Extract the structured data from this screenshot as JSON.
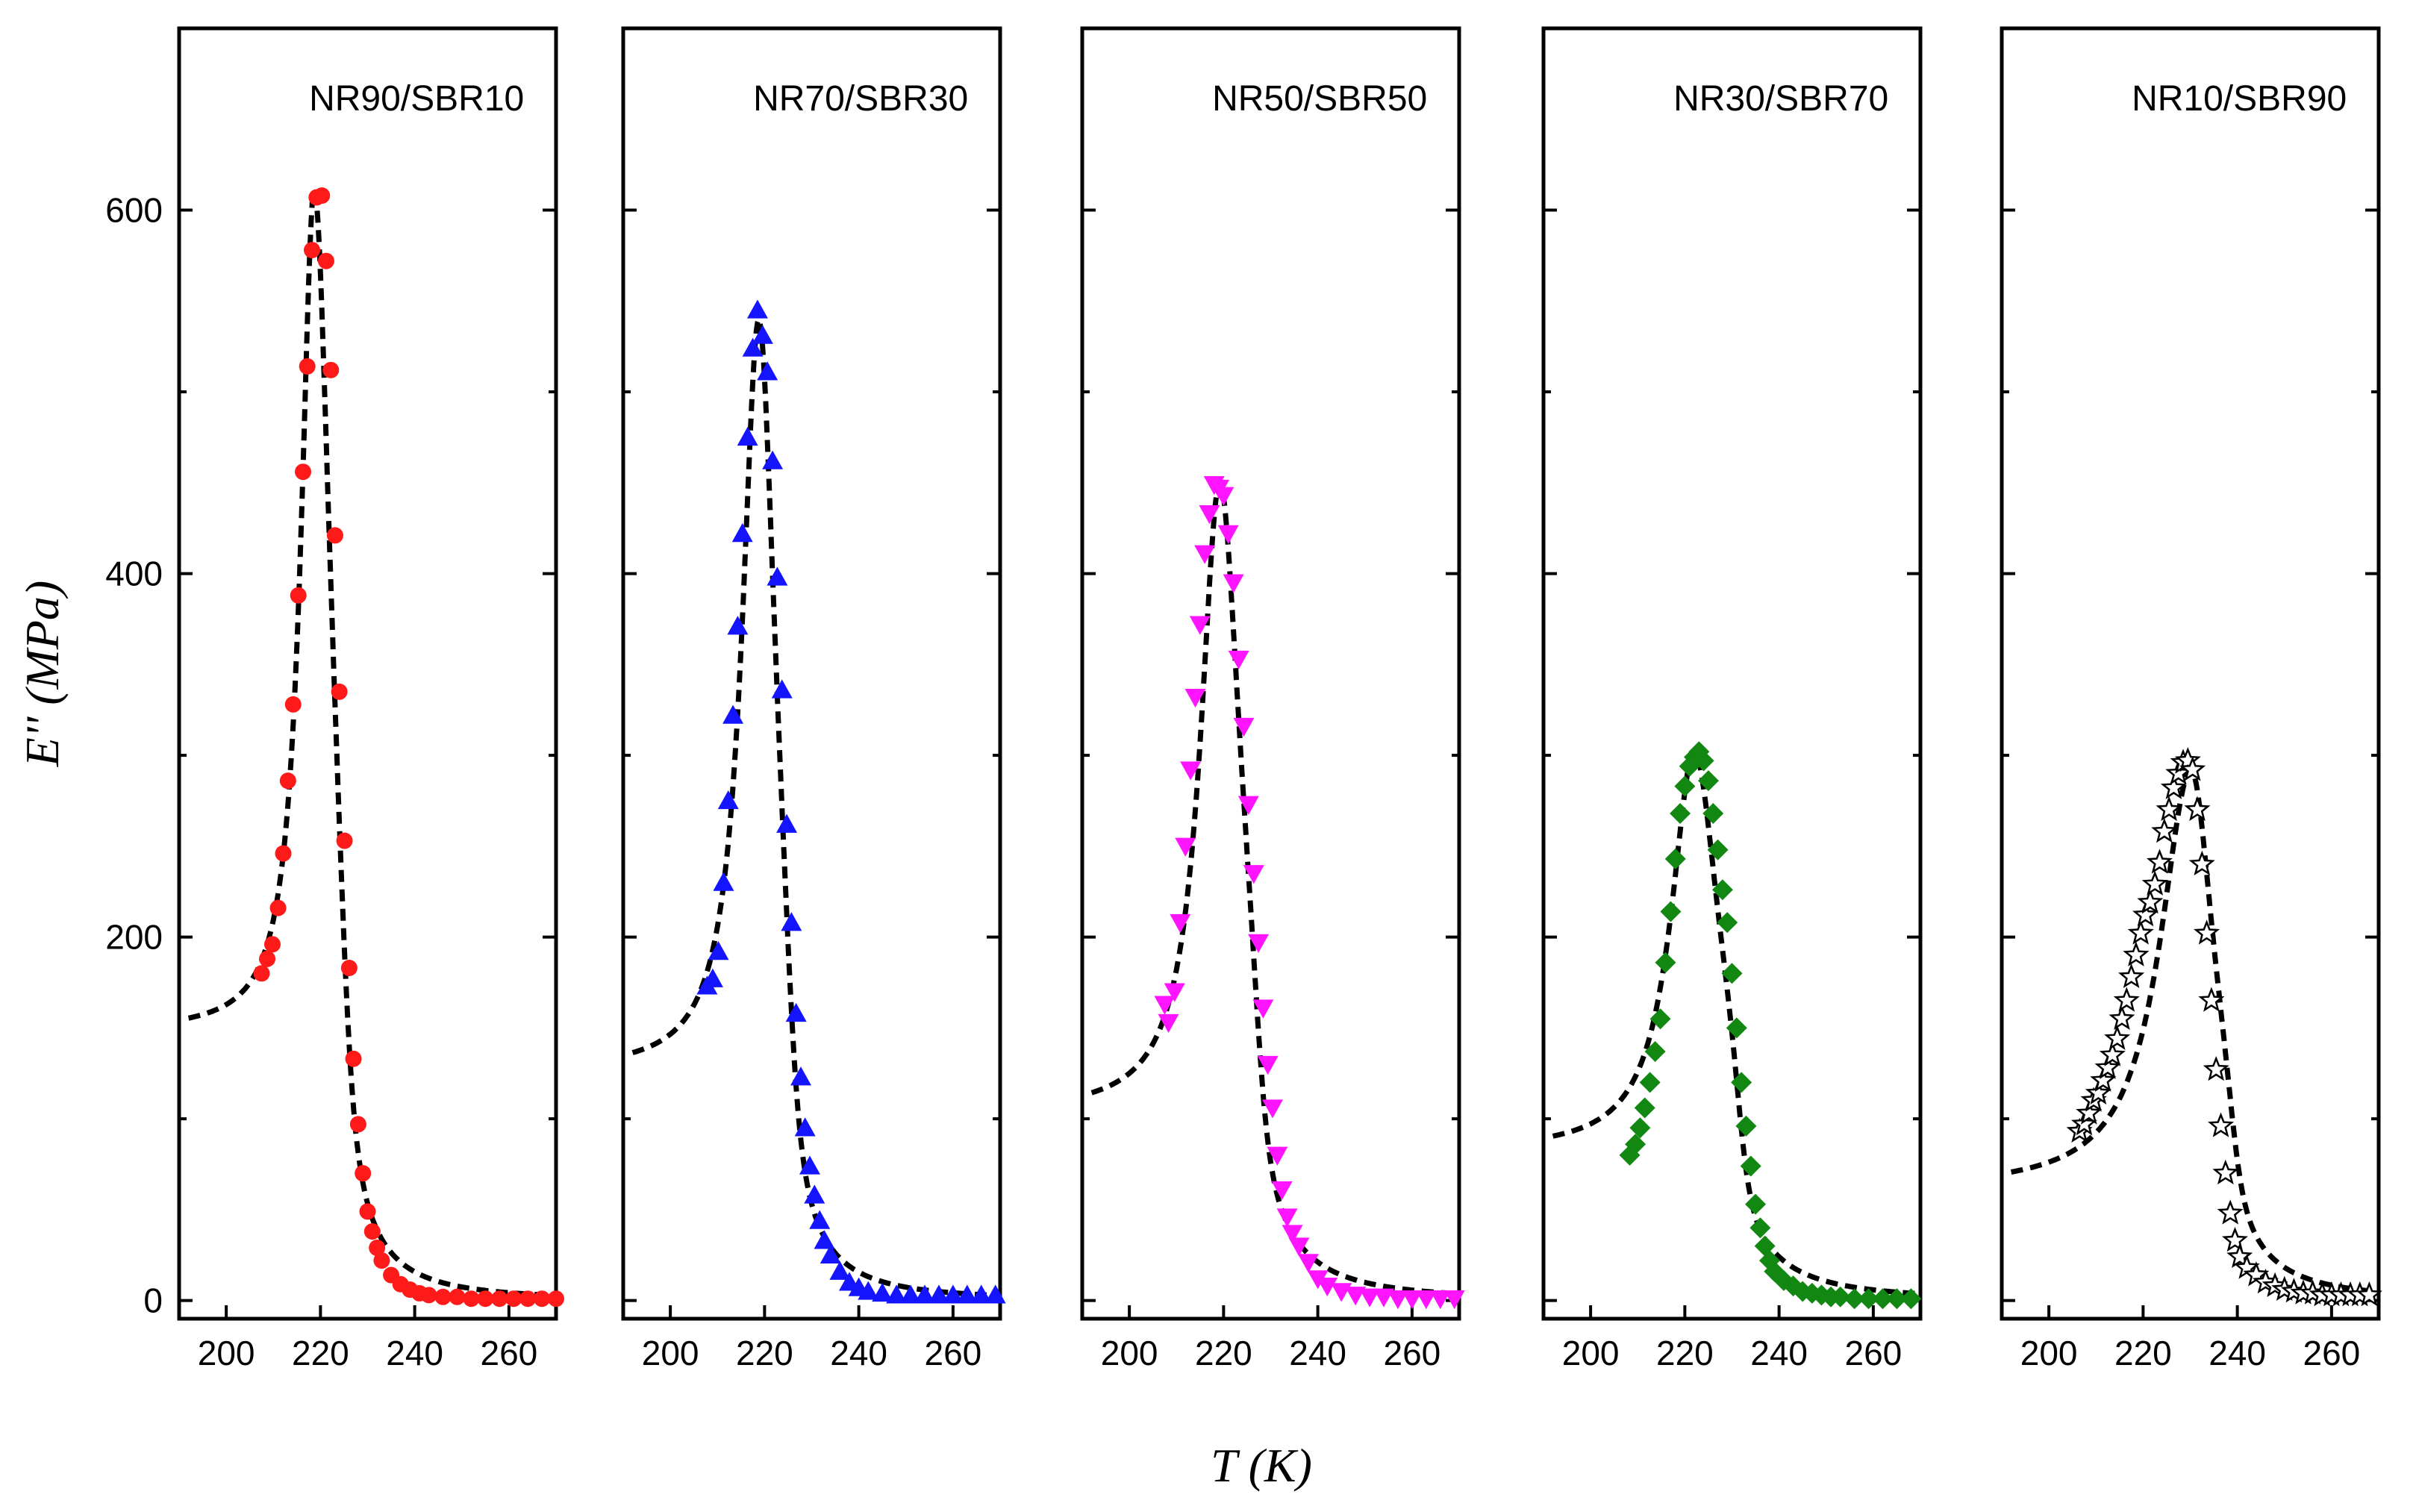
{
  "chart_data": {
    "type": "scatter",
    "layout": "1x5 panels, shared y-axis",
    "xlabel": "T (K)",
    "ylabel": "E'' (MPa)",
    "xlim": [
      190,
      270
    ],
    "ylim": [
      -10,
      700
    ],
    "xticks": [
      200,
      220,
      240,
      260
    ],
    "yticks": [
      0,
      200,
      400,
      600
    ],
    "xtick_labels": [
      "200",
      "220",
      "240",
      "260"
    ],
    "ytick_labels": [
      "0",
      "200",
      "400",
      "600"
    ],
    "panels": [
      {
        "title": "NR90/SBR10",
        "marker": "circle",
        "color": "#ff1a1a",
        "fit": {
          "base": 148,
          "peak_x": 218.7,
          "peak_y": 612,
          "hwhm_left": 3.4,
          "hwhm_right": 4.0,
          "x_start": 192
        },
        "x": [
          207.5,
          208.7,
          209.8,
          211,
          212.1,
          213.1,
          214.2,
          215.3,
          216.3,
          217.2,
          218.2,
          219.2,
          220.3,
          221.2,
          222.2,
          223.1,
          224,
          225.1,
          226.1,
          227,
          228,
          229,
          230,
          231,
          232,
          233,
          235,
          237,
          239,
          241,
          243,
          246,
          249,
          252,
          255,
          258,
          261,
          264,
          267,
          270
        ],
        "y": [
          180,
          188,
          196,
          216,
          246,
          286,
          328,
          388,
          456,
          514,
          578,
          607,
          608,
          572,
          512,
          421,
          335,
          253,
          183,
          133,
          97,
          70,
          49,
          38,
          29,
          22,
          14,
          9,
          6,
          4,
          3,
          2,
          2,
          1,
          1,
          1,
          1,
          1,
          1,
          1
        ]
      },
      {
        "title": "NR70/SBR30",
        "marker": "triangle-up",
        "color": "#1414ff",
        "fit": {
          "base": 126,
          "peak_x": 218.8,
          "peak_y": 540,
          "hwhm_left": 4.3,
          "hwhm_right": 4.2,
          "x_start": 192
        },
        "x": [
          207.8,
          209,
          210.2,
          211.3,
          212.3,
          213.3,
          214.3,
          215.3,
          216.4,
          217.5,
          218.5,
          219.6,
          220.6,
          221.7,
          222.7,
          223.7,
          224.7,
          225.7,
          226.7,
          227.7,
          228.6,
          229.6,
          230.6,
          231.7,
          232.7,
          234,
          236,
          238,
          240,
          242,
          245,
          248,
          251,
          254,
          257,
          260,
          263,
          266,
          269
        ],
        "y": [
          173,
          177,
          192,
          230,
          275,
          322,
          371,
          422,
          475,
          524,
          545,
          531,
          511,
          462,
          398,
          336,
          262,
          208,
          158,
          123,
          95,
          74,
          58,
          44,
          33,
          25,
          16,
          10,
          7,
          5,
          4,
          3,
          3,
          3,
          3,
          3,
          3,
          3,
          3
        ]
      },
      {
        "title": "NR50/SBR50",
        "marker": "triangle-down",
        "color": "#ff14ff",
        "fit": {
          "base": 103,
          "peak_x": 219.2,
          "peak_y": 450,
          "hwhm_left": 5.0,
          "hwhm_right": 5.3,
          "x_start": 192
        },
        "x": [
          207.5,
          208.3,
          209.6,
          210.8,
          211.9,
          213,
          214,
          215,
          216,
          217,
          218,
          219,
          220,
          221,
          222.1,
          223.2,
          224.3,
          225.3,
          226.4,
          227.4,
          228.4,
          229.4,
          230.4,
          231.4,
          232.4,
          233.5,
          234.6,
          236,
          238,
          240,
          242,
          245,
          248,
          251,
          254,
          257,
          260,
          263,
          266,
          269
        ],
        "y": [
          163,
          153,
          170,
          208,
          250,
          292,
          332,
          372,
          411,
          433,
          449,
          447,
          443,
          422,
          395,
          353,
          316,
          273,
          235,
          197,
          161,
          130,
          106,
          80,
          61,
          46,
          37,
          30,
          21,
          12,
          8,
          5,
          3,
          2,
          2,
          1,
          1,
          1,
          1,
          1
        ]
      },
      {
        "title": "NR30/SBR70",
        "marker": "diamond",
        "color": "#128712",
        "fit": {
          "base": 82,
          "peak_x": 222.0,
          "peak_y": 302,
          "hwhm_left": 6.0,
          "hwhm_right": 6.3,
          "x_start": 192
        },
        "x": [
          208.3,
          209.5,
          210.5,
          211.5,
          212.6,
          213.7,
          214.8,
          215.9,
          217,
          218,
          219,
          220,
          221,
          222,
          223,
          224,
          225,
          226,
          227,
          228,
          229,
          230,
          231,
          232,
          233,
          234,
          235,
          236,
          237,
          238,
          239,
          241,
          243,
          245,
          247,
          249,
          251,
          253,
          256,
          259,
          262,
          265,
          268
        ],
        "y": [
          80,
          86,
          95,
          106,
          120,
          137,
          155,
          186,
          214,
          243,
          268,
          283,
          294,
          299,
          302,
          297,
          286,
          268,
          248,
          226,
          208,
          180,
          150,
          120,
          96,
          74,
          53,
          40,
          30,
          22,
          16,
          11,
          8,
          5,
          4,
          3,
          2,
          2,
          1,
          1,
          1,
          1,
          1
        ]
      },
      {
        "title": "NR10/SBR90",
        "marker": "star",
        "color": "#ffffff",
        "edge_color": "#000000",
        "fit": {
          "base": 61,
          "peak_x": 230.2,
          "peak_y": 292,
          "hwhm_left": 8.0,
          "hwhm_right": 5.8,
          "x_start": 192
        },
        "x": [
          206.5,
          207.5,
          208.5,
          209.5,
          210.5,
          211.5,
          212.5,
          213.5,
          214.5,
          215.5,
          216.5,
          217.5,
          218.5,
          219.5,
          220.5,
          221.5,
          222.5,
          223.5,
          224.5,
          225.5,
          226.5,
          227.5,
          228.5,
          229.5,
          230.5,
          231.5,
          232.5,
          233.5,
          234.5,
          235.5,
          236.5,
          237.5,
          238.5,
          239.5,
          240.5,
          242,
          244,
          246,
          248,
          250,
          252,
          254,
          256,
          258,
          260,
          262,
          264,
          266,
          268
        ],
        "y": [
          93,
          97,
          103,
          110,
          114,
          121,
          128,
          135,
          144,
          155,
          165,
          178,
          190,
          202,
          212,
          219,
          229,
          241,
          258,
          270,
          282,
          290,
          296,
          297,
          292,
          270,
          240,
          202,
          165,
          127,
          96,
          70,
          48,
          33,
          24,
          18,
          14,
          10,
          8,
          6,
          5,
          4,
          4,
          3,
          3,
          3,
          3,
          3,
          3
        ]
      }
    ]
  }
}
